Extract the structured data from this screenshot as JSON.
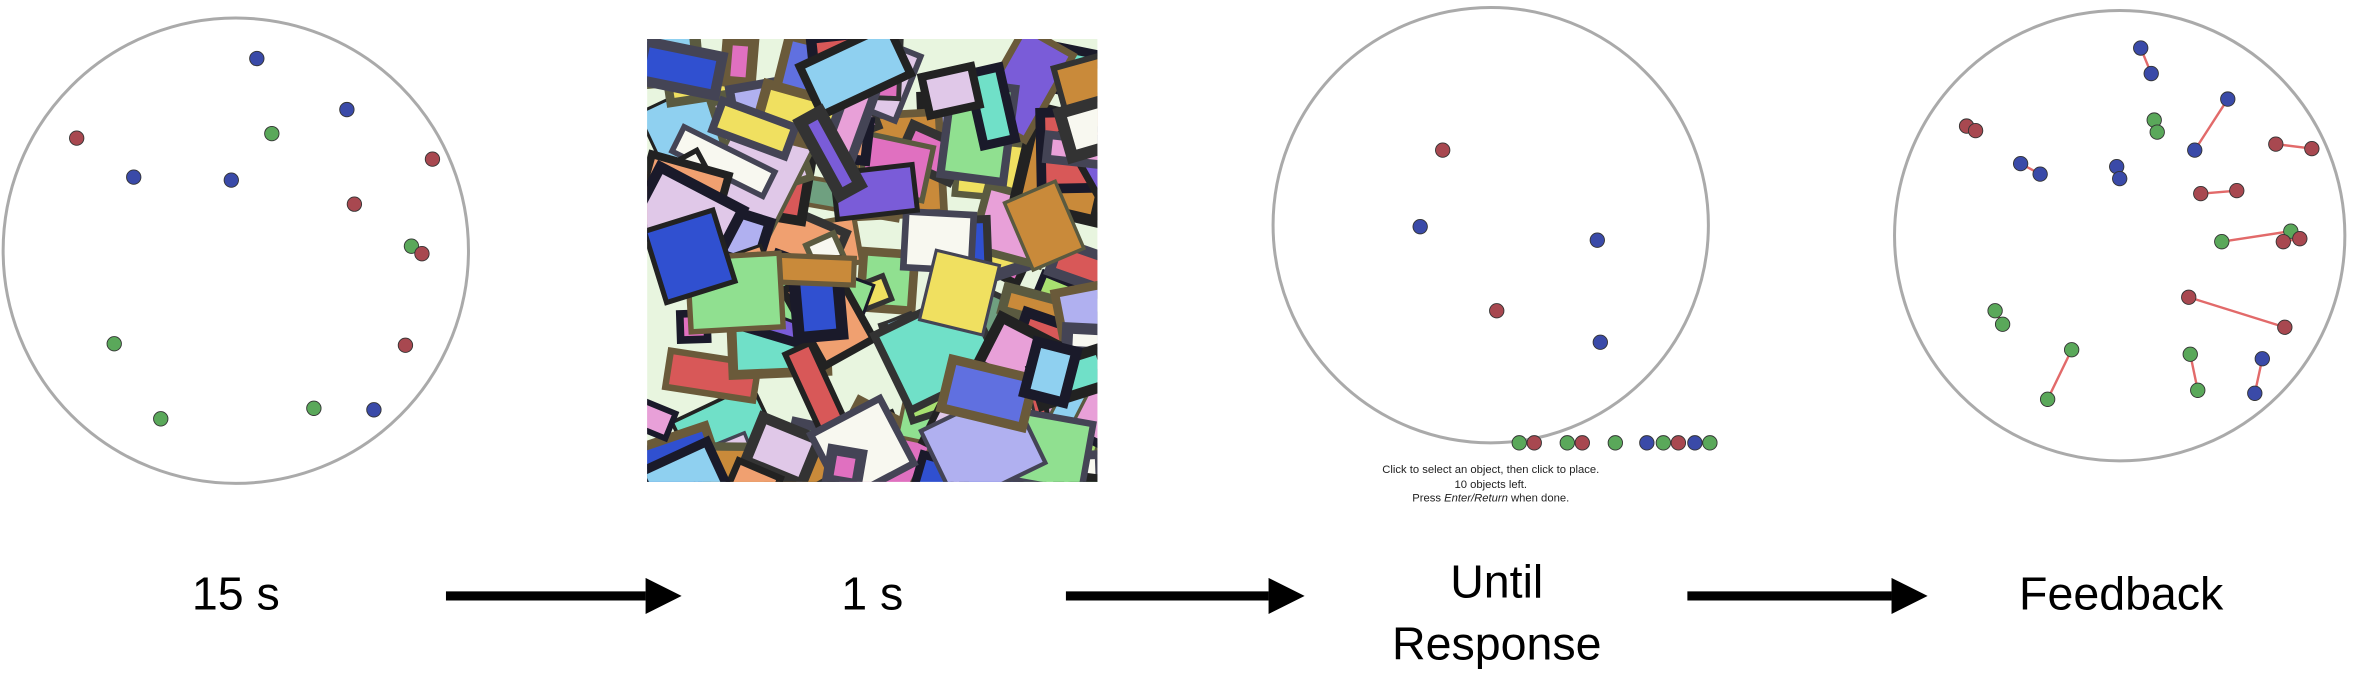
{
  "panels": [
    {
      "label": "15 s"
    },
    {
      "label": "1 s"
    },
    {
      "label_lines": [
        "Until",
        "Response"
      ],
      "instructions": {
        "line1": "Click to select an object, then click to place.",
        "line2": "10 objects left.",
        "line3_before": "Press",
        "line3_emphasis": "Enter/Return",
        "line3_after": "when done."
      }
    },
    {
      "label": "Feedback"
    }
  ]
}
